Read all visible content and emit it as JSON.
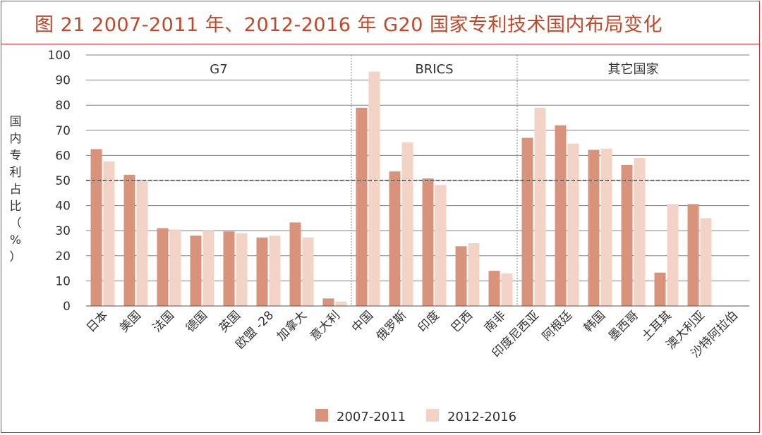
{
  "title": "图 21  2007-2011 年、2012-2016 年 G20 国家专利技术国内布局变化",
  "chart_data": {
    "type": "bar",
    "ylabel": "国内专利占比（%）",
    "ylim": [
      0,
      100
    ],
    "yticks": [
      0,
      10,
      20,
      30,
      40,
      50,
      60,
      70,
      80,
      90,
      100
    ],
    "reference_line": 50,
    "groups": [
      {
        "label": "G7",
        "count": 8
      },
      {
        "label": "BRICS",
        "count": 5
      },
      {
        "label": "其它国家",
        "count": 7
      }
    ],
    "categories": [
      "日本",
      "美国",
      "法国",
      "德国",
      "英国",
      "欧盟 -28",
      "加拿大",
      "意大利",
      "中国",
      "俄罗斯",
      "印度",
      "巴西",
      "南非",
      "印度尼西亚",
      "阿根廷",
      "韩国",
      "墨西哥",
      "土耳其",
      "澳大利亚",
      "沙特阿拉伯"
    ],
    "series": [
      {
        "name": "2007-2011",
        "color": "#d9937a",
        "values": [
          62.5,
          52.3,
          31,
          28,
          29.7,
          27.3,
          33.3,
          3,
          79,
          53.6,
          50.8,
          23.8,
          14,
          67,
          72,
          62.2,
          56.2,
          13.3,
          40.6,
          0
        ]
      },
      {
        "name": "2012-2016",
        "color": "#f3d3c6",
        "values": [
          57.6,
          50,
          30.5,
          30,
          29,
          28,
          27.3,
          1.8,
          93.4,
          65.2,
          48.2,
          25,
          13,
          79,
          64.7,
          62.7,
          59,
          40.6,
          35,
          0
        ]
      }
    ],
    "grid": true,
    "legend_position": "bottom-center"
  }
}
